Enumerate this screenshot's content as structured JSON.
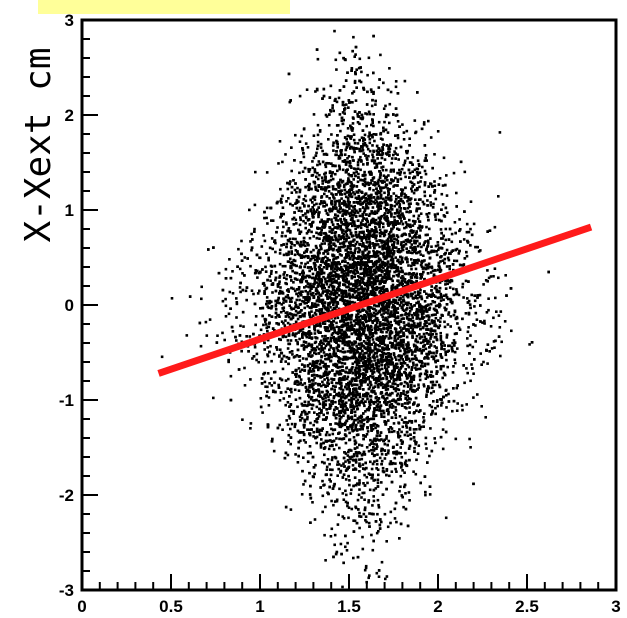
{
  "chart_data": {
    "type": "scatter",
    "title": "",
    "xlabel": "",
    "ylabel": "X-Xext cm",
    "xlim": [
      0,
      3
    ],
    "ylim": [
      -3,
      3
    ],
    "x_ticks": [
      "0",
      "0.5",
      "1",
      "1.5",
      "2",
      "2.5",
      "3"
    ],
    "y_ticks": [
      "-3",
      "-2",
      "-1",
      "0",
      "1",
      "2",
      "3"
    ],
    "x_minor_step": 0.1,
    "y_minor_step": 0.2,
    "grid": false,
    "points_description_free": true,
    "point_cloud": {
      "center": [
        1.57,
        0.0
      ],
      "x_spread": 0.32,
      "y_spread": 0.95,
      "count": 9000,
      "color": "#000000"
    },
    "fit_line": {
      "x": [
        0.43,
        2.86
      ],
      "y": [
        -0.72,
        0.82
      ],
      "color": "#ff1a1a"
    },
    "label_highlight_color": "#ffff99"
  }
}
